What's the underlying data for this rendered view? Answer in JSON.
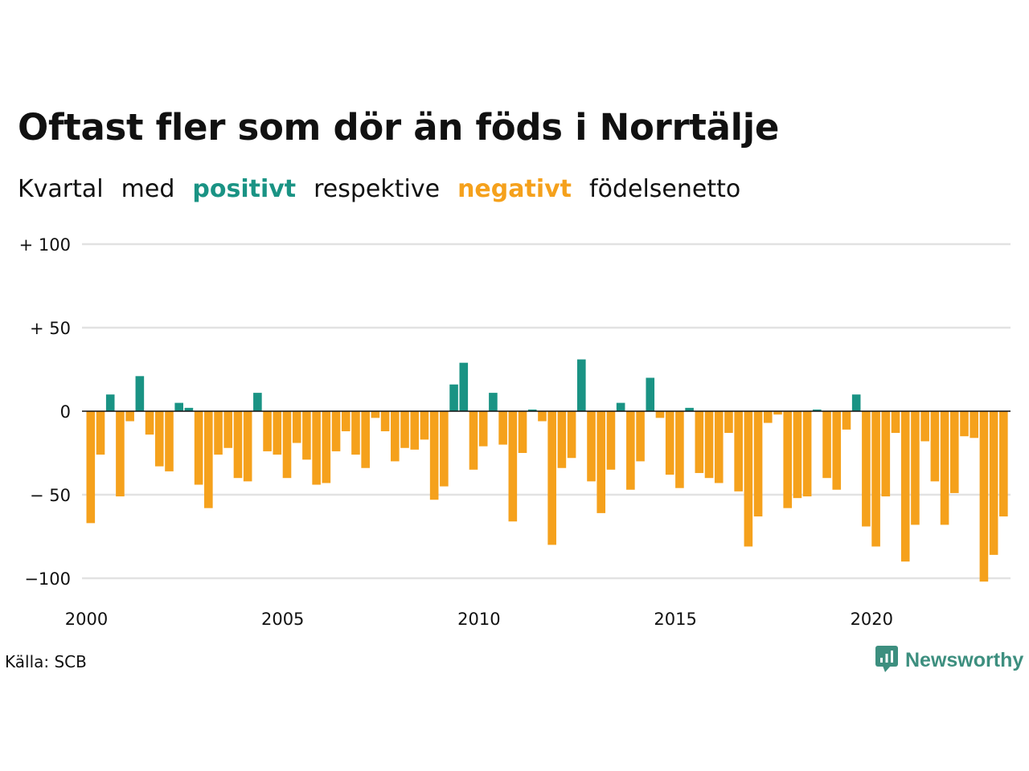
{
  "header": {
    "title": "Oftast fler som dör än föds i Norrtälje",
    "subtitle": {
      "part1": "Kvartal",
      "part2": "med",
      "positive": "positivt",
      "part3": "respektive",
      "negative": "negativt",
      "part4": "födelsenetto"
    }
  },
  "colors": {
    "positive": "#1a9384",
    "negative": "#f5a11c",
    "grid": "#e2e2e2",
    "brand": "#3d8f7f"
  },
  "footer": {
    "source": "Källa: SCB",
    "brand_name": "Newsworthy"
  },
  "chart_data": {
    "type": "bar",
    "title": "Oftast fler som dör än föds i Norrtälje",
    "subtitle": "Kvartal med positivt respektive negativt födelsenetto",
    "xlabel": "",
    "ylabel": "",
    "ylim": [
      -110,
      100
    ],
    "y_ticks": [
      100,
      50,
      0,
      -50,
      -100
    ],
    "y_tick_labels": [
      "+ 100",
      "+  50",
      "0",
      "− 50",
      "−100"
    ],
    "x_ticks": [
      2000,
      2005,
      2010,
      2015,
      2020
    ],
    "x_tick_labels": [
      "2000",
      "2005",
      "2010",
      "2015",
      "2020"
    ],
    "grid": true,
    "legend": "none",
    "start": {
      "year": 2000,
      "quarter": 1
    },
    "frequency": "quarterly",
    "values": [
      -67,
      -26,
      10,
      -51,
      -6,
      21,
      -14,
      -33,
      -36,
      5,
      2,
      -44,
      -58,
      -26,
      -22,
      -40,
      -42,
      11,
      -24,
      -26,
      -40,
      -19,
      -29,
      -44,
      -43,
      -24,
      -12,
      -26,
      -34,
      -4,
      -12,
      -30,
      -22,
      -23,
      -17,
      -53,
      -45,
      16,
      29,
      -35,
      -21,
      11,
      -20,
      -66,
      -25,
      1,
      -6,
      -80,
      -34,
      -28,
      31,
      -42,
      -61,
      -35,
      5,
      -47,
      -30,
      20,
      -4,
      -38,
      -46,
      2,
      -37,
      -40,
      -43,
      -13,
      -48,
      -81,
      -63,
      -7,
      -2,
      -58,
      -52,
      -51,
      1,
      -40,
      -47,
      -11,
      10,
      -69,
      -81,
      -51,
      -13,
      -90,
      -68,
      -18,
      -42,
      -68,
      -49,
      -15,
      -16,
      -102,
      -86,
      -63
    ]
  }
}
